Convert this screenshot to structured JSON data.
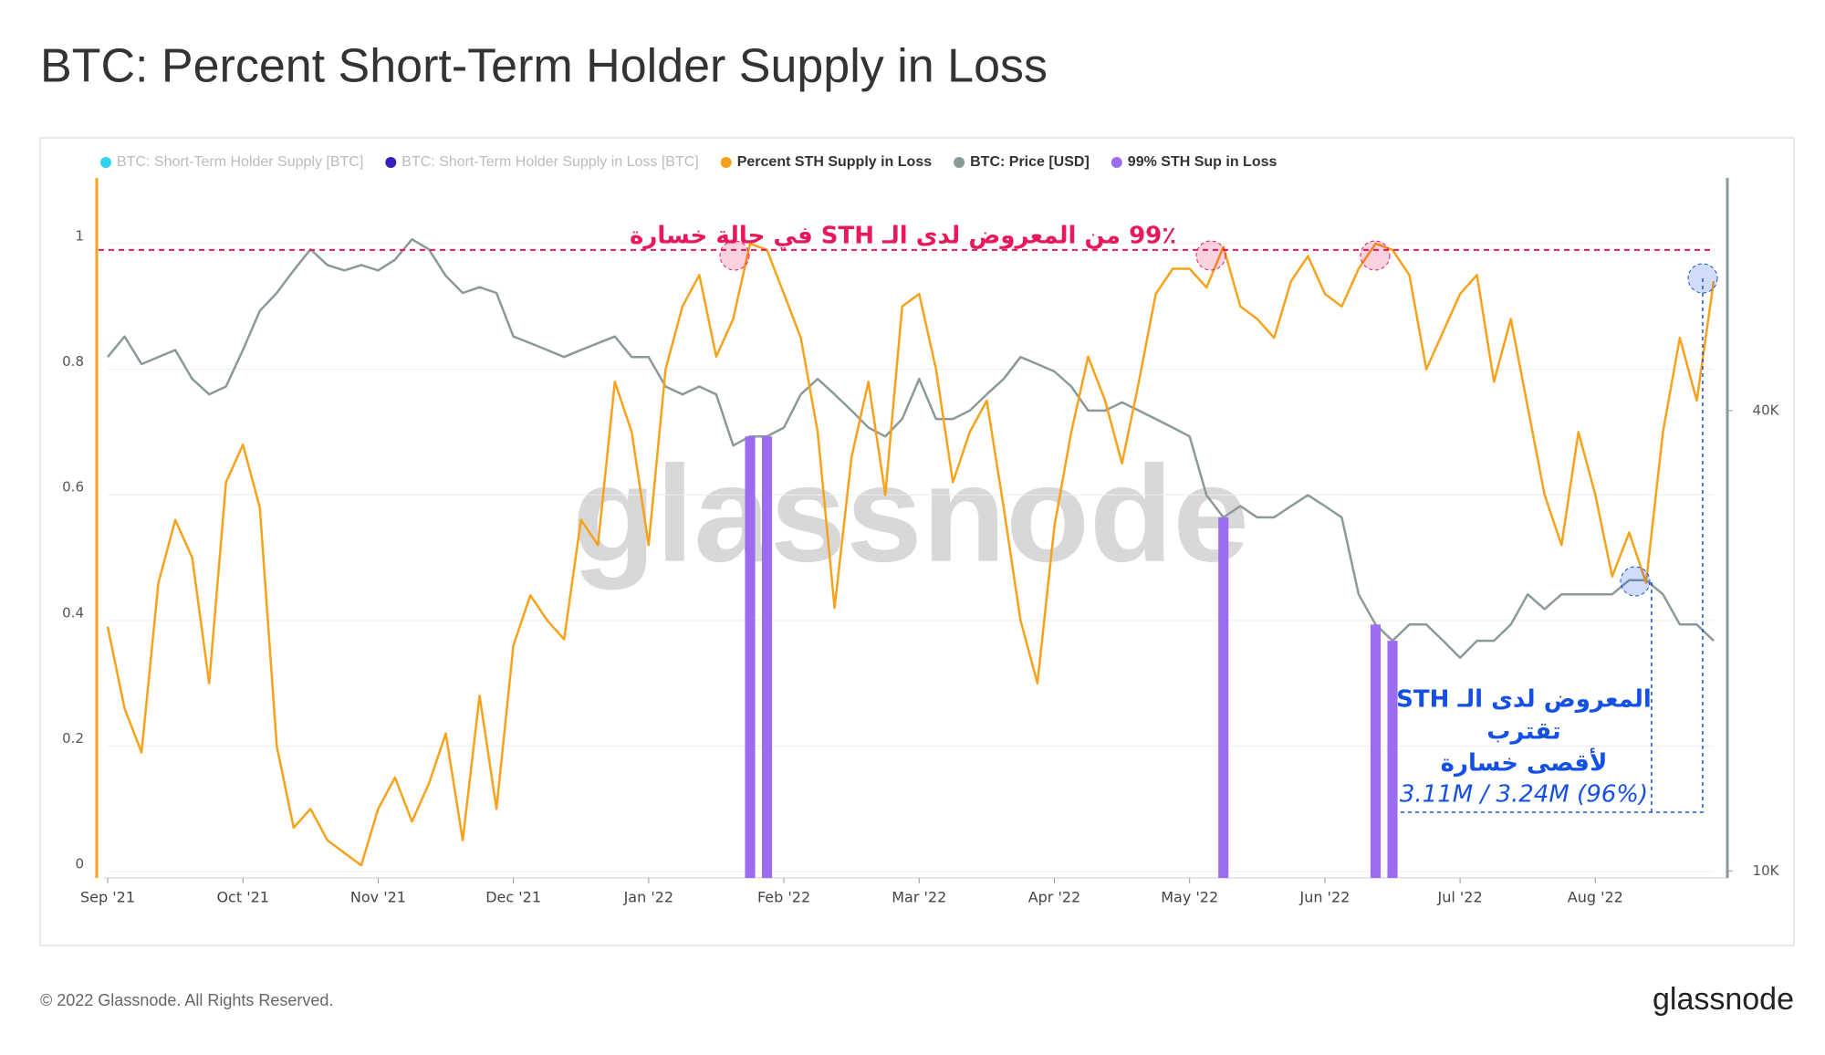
{
  "chart_data": {
    "type": "line",
    "title": "BTC: Percent Short-Term Holder Supply in Loss",
    "categories": [
      "Sep '21",
      null,
      null,
      null,
      null,
      null,
      null,
      null,
      "Oct '21",
      null,
      null,
      null,
      null,
      null,
      null,
      null,
      "Nov '21",
      null,
      null,
      null,
      null,
      null,
      null,
      null,
      "Dec '21",
      null,
      null,
      null,
      null,
      null,
      null,
      null,
      "Jan '22",
      null,
      null,
      null,
      null,
      null,
      null,
      null,
      "Feb '22",
      null,
      null,
      null,
      null,
      null,
      null,
      null,
      "Mar '22",
      null,
      null,
      null,
      null,
      null,
      null,
      null,
      "Apr '22",
      null,
      null,
      null,
      null,
      null,
      null,
      null,
      "May '22",
      null,
      null,
      null,
      null,
      null,
      null,
      null,
      "Jun '22",
      null,
      null,
      null,
      null,
      null,
      null,
      null,
      "Jul '22",
      null,
      null,
      null,
      null,
      null,
      null,
      null,
      "Aug '22",
      null,
      null,
      null,
      null,
      null,
      null,
      null
    ],
    "legend_inactive": [
      {
        "name": "BTC: Short-Term Holder Supply [BTC]",
        "color": "#2ed3f0"
      },
      {
        "name": "BTC: Short-Term Holder Supply in Loss [BTC]",
        "color": "#3a1fb8"
      }
    ],
    "series": [
      {
        "name": "Percent STH Supply in Loss",
        "color": "#f7a21b",
        "type": "line",
        "axis": "y",
        "values": [
          0.39,
          0.26,
          0.19,
          0.46,
          0.56,
          0.5,
          0.3,
          0.62,
          0.68,
          0.58,
          0.2,
          0.07,
          0.1,
          0.05,
          0.03,
          0.01,
          0.1,
          0.15,
          0.08,
          0.14,
          0.22,
          0.05,
          0.28,
          0.1,
          0.36,
          0.44,
          0.4,
          0.37,
          0.56,
          0.52,
          0.78,
          0.7,
          0.52,
          0.8,
          0.9,
          0.95,
          0.82,
          0.88,
          1.0,
          0.99,
          0.92,
          0.85,
          0.7,
          0.42,
          0.66,
          0.78,
          0.6,
          0.9,
          0.92,
          0.8,
          0.62,
          0.7,
          0.75,
          0.58,
          0.4,
          0.3,
          0.55,
          0.7,
          0.82,
          0.75,
          0.65,
          0.78,
          0.92,
          0.96,
          0.96,
          0.93,
          0.995,
          0.9,
          0.88,
          0.85,
          0.94,
          0.98,
          0.92,
          0.9,
          0.96,
          1.0,
          0.99,
          0.95,
          0.8,
          0.86,
          0.92,
          0.95,
          0.78,
          0.88,
          0.74,
          0.6,
          0.52,
          0.7,
          0.6,
          0.47,
          0.54,
          0.46,
          0.7,
          0.85,
          0.75,
          0.94
        ]
      },
      {
        "name": "BTC: Price [USD]",
        "color": "#8a9a9b",
        "type": "line",
        "axis": "y2",
        "values": [
          47000,
          50000,
          46000,
          47000,
          48000,
          44000,
          42000,
          43000,
          48000,
          54000,
          57000,
          61000,
          65000,
          62000,
          61000,
          62000,
          61000,
          63000,
          67000,
          65000,
          60000,
          57000,
          58000,
          57000,
          50000,
          49000,
          48000,
          47000,
          48000,
          49000,
          50000,
          47000,
          47000,
          43000,
          42000,
          43000,
          42000,
          36000,
          37000,
          37000,
          38000,
          42000,
          44000,
          42000,
          40000,
          38000,
          37000,
          39000,
          44000,
          39000,
          39000,
          40000,
          42000,
          44000,
          47000,
          46000,
          45000,
          43000,
          40000,
          40000,
          41000,
          40000,
          39000,
          38000,
          37000,
          31000,
          29000,
          30000,
          29000,
          29000,
          30000,
          31000,
          30000,
          29000,
          23000,
          21000,
          20000,
          21000,
          21000,
          20000,
          19000,
          20000,
          20000,
          21000,
          23000,
          22000,
          23000,
          23000,
          23000,
          23000,
          24000,
          24000,
          23000,
          21000,
          21000,
          20000
        ]
      },
      {
        "name": "99% STH Sup in Loss",
        "color": "#9b6cf0",
        "type": "bar",
        "axis": "y2",
        "values": [
          null,
          null,
          null,
          null,
          null,
          null,
          null,
          null,
          null,
          null,
          null,
          null,
          null,
          null,
          null,
          null,
          null,
          null,
          null,
          null,
          null,
          null,
          null,
          null,
          null,
          null,
          null,
          null,
          null,
          null,
          null,
          null,
          null,
          null,
          null,
          null,
          null,
          null,
          37000,
          37000,
          null,
          null,
          null,
          null,
          null,
          null,
          null,
          null,
          null,
          null,
          null,
          null,
          null,
          null,
          null,
          null,
          null,
          null,
          null,
          null,
          null,
          null,
          null,
          null,
          null,
          null,
          29000,
          null,
          null,
          null,
          null,
          null,
          null,
          null,
          null,
          21000,
          20000,
          null,
          null,
          null,
          null,
          null,
          null,
          null,
          null,
          null,
          null,
          null,
          null,
          null,
          null,
          null,
          null,
          null,
          null,
          null
        ]
      }
    ],
    "ylim": [
      -0.01,
      1.09
    ],
    "yticks": [
      0,
      0.2,
      0.4,
      0.6,
      0.8,
      1
    ],
    "y2lim": [
      9790,
      78400
    ],
    "y2ticks": [
      {
        "value": 10000,
        "label": "10K"
      },
      {
        "value": 40000,
        "label": "40K"
      }
    ],
    "y2_log": true,
    "grid": true,
    "threshold": {
      "value": 0.99,
      "label": "99٪ من المعروض لدى الـ STH في حالة خسارة",
      "color": "#e8185a"
    },
    "annotation": {
      "lines": [
        "المعروض لدى الـ STH",
        "تقترب",
        "لأقصى خسارة"
      ],
      "detail": "3.11M / 3.24M (96%)",
      "color": "#1450e6"
    },
    "watermark": "glassnode"
  },
  "footer": {
    "copyright": "© 2022 Glassnode. All Rights Reserved.",
    "logo": "glassnode"
  }
}
